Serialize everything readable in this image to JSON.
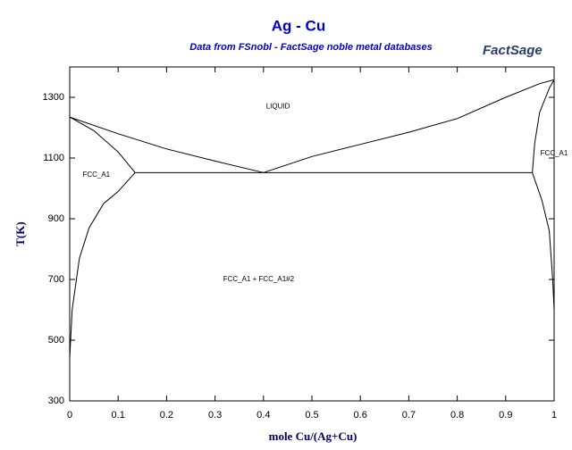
{
  "chart_data": {
    "type": "line",
    "title": "Ag - Cu",
    "subtitle": "Data from FSnobl - FactSage noble metal databases",
    "logo": "FactSage",
    "x_label": "mole Cu/(Ag+Cu)",
    "y_label": "T(K)",
    "xlim": [
      0,
      1
    ],
    "xticks": [
      0,
      0.1,
      0.2,
      0.3,
      0.4,
      0.5,
      0.6,
      0.7,
      0.8,
      0.9,
      1
    ],
    "ylim": [
      300,
      1400
    ],
    "yticks": [
      300,
      500,
      700,
      900,
      1100,
      1300
    ],
    "series": [
      {
        "color": "#000000",
        "x": [
          0,
          0.1,
          0.2,
          0.3,
          0.4
        ],
        "values": [
          1235,
          1180,
          1130,
          1090,
          1052
        ]
      },
      {
        "color": "#000000",
        "x": [
          0.4,
          0.5,
          0.6,
          0.7,
          0.8,
          0.9,
          0.97,
          1
        ],
        "values": [
          1052,
          1105,
          1145,
          1185,
          1230,
          1300,
          1345,
          1358
        ]
      },
      {
        "color": "#000000",
        "x": [
          0,
          0.05,
          0.1,
          0.135
        ],
        "values": [
          1235,
          1190,
          1120,
          1052
        ]
      },
      {
        "color": "#000000",
        "x": [
          0.135,
          0.1,
          0.07,
          0.04,
          0.02,
          0.005,
          0
        ],
        "values": [
          1052,
          990,
          950,
          870,
          770,
          600,
          440
        ]
      },
      {
        "color": "#000000",
        "x": [
          0.135,
          0.955
        ],
        "values": [
          1052,
          1052
        ]
      },
      {
        "color": "#000000",
        "x": [
          0.955,
          0.96,
          0.97,
          0.99,
          1
        ],
        "values": [
          1052,
          1150,
          1250,
          1330,
          1358
        ]
      },
      {
        "color": "#000000",
        "x": [
          0.955,
          0.975,
          0.99,
          0.997,
          1
        ],
        "values": [
          1052,
          960,
          860,
          700,
          600
        ]
      }
    ],
    "annotations": [
      {
        "text": "LIQUID",
        "x": 0.43,
        "y": 1270
      },
      {
        "text": "FCC_A1",
        "x": 0.055,
        "y": 1045
      },
      {
        "text": "FCC_A1 + FCC_A1#2",
        "x": 0.39,
        "y": 700
      },
      {
        "text": "FCC_A1",
        "x": 1.0,
        "y": 1115
      }
    ]
  }
}
